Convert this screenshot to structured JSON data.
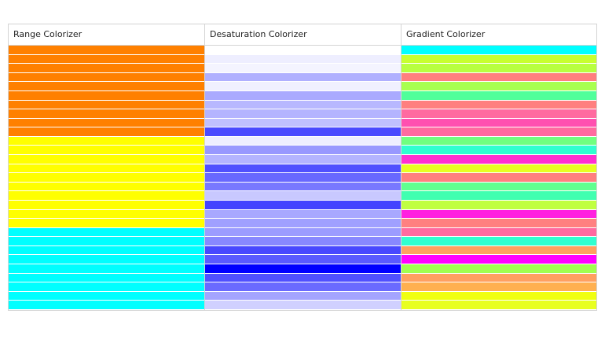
{
  "columns": [
    {
      "label": "Range Colorizer"
    },
    {
      "label": "Desaturation Colorizer"
    },
    {
      "label": "Gradient Colorizer"
    }
  ],
  "colors": {
    "range": [
      "#ff8000",
      "#ff8000",
      "#ff8000",
      "#ff8000",
      "#ff8000",
      "#ff8000",
      "#ff8000",
      "#ff8000",
      "#ff8000",
      "#ff8000",
      "#ffff00",
      "#ffff00",
      "#ffff00",
      "#ffff00",
      "#ffff00",
      "#ffff00",
      "#ffff00",
      "#ffff00",
      "#ffff00",
      "#ffff00",
      "#00ffff",
      "#00ffff",
      "#00ffff",
      "#00ffff",
      "#00ffff",
      "#00ffff",
      "#00ffff",
      "#00ffff",
      "#00ffff"
    ],
    "desaturation": [
      "#ffffff",
      "#eeeeff",
      "#f4f4ff",
      "#b0b0ff",
      "#f0f0ff",
      "#aaaaff",
      "#b8b8ff",
      "#b4b4ff",
      "#c0c0ff",
      "#4a4aff",
      "#eeeeff",
      "#9898ff",
      "#b4b4ff",
      "#5050ff",
      "#6868ff",
      "#7878ff",
      "#c8c8ff",
      "#4444ff",
      "#a8a8ff",
      "#a0a0ff",
      "#9c9cff",
      "#8888ff",
      "#4848ff",
      "#5a5aff",
      "#0000ff",
      "#5050ff",
      "#6a6aff",
      "#a4a4ff",
      "#d0d0ff"
    ],
    "gradient": [
      "#00ffff",
      "#c8ff30",
      "#b8ff40",
      "#ff7f7f",
      "#a8ff50",
      "#50ff9a",
      "#ff7f7f",
      "#ff6aa0",
      "#ff50b0",
      "#ff6aa0",
      "#70ff80",
      "#30ffd0",
      "#ff30d0",
      "#e8ff20",
      "#ff7f7f",
      "#60ff90",
      "#40ffb0",
      "#c0ff40",
      "#ff20e0",
      "#ff8080",
      "#ff6aa0",
      "#30ffd0",
      "#ffa060",
      "#ff00ff",
      "#a0ff50",
      "#ffa060",
      "#ffb050",
      "#f0ff10",
      "#e8ff20"
    ]
  }
}
